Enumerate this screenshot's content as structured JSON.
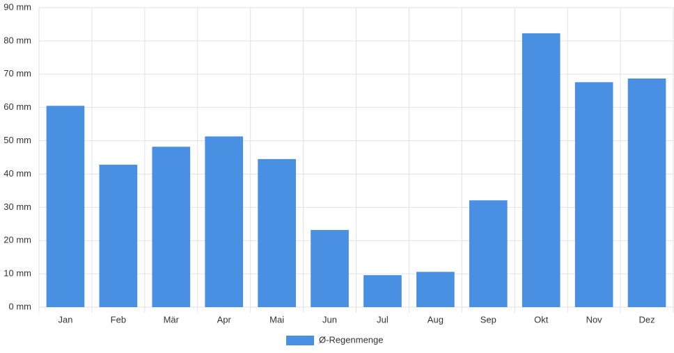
{
  "chart_data": {
    "type": "bar",
    "categories": [
      "Jan",
      "Feb",
      "Mär",
      "Apr",
      "Mai",
      "Jun",
      "Jul",
      "Aug",
      "Sep",
      "Okt",
      "Nov",
      "Dez"
    ],
    "series": [
      {
        "name": "Ø-Regenmenge",
        "color": "#4a90e2",
        "values": [
          60.5,
          42.8,
          48.2,
          51.3,
          44.5,
          23.2,
          9.6,
          10.6,
          32.1,
          82.3,
          67.6,
          68.7
        ]
      }
    ],
    "ylim": [
      0,
      90
    ],
    "yticks": [
      {
        "value": 0,
        "label": "0 mm"
      },
      {
        "value": 10,
        "label": "10 mm"
      },
      {
        "value": 20,
        "label": "20 mm"
      },
      {
        "value": 30,
        "label": "30 mm"
      },
      {
        "value": 40,
        "label": "40 mm"
      },
      {
        "value": 50,
        "label": "50 mm"
      },
      {
        "value": 60,
        "label": "60 mm"
      },
      {
        "value": 70,
        "label": "70 mm"
      },
      {
        "value": 80,
        "label": "80 mm"
      },
      {
        "value": 90,
        "label": "90 mm"
      }
    ],
    "grid": true,
    "legend": "bottom"
  }
}
